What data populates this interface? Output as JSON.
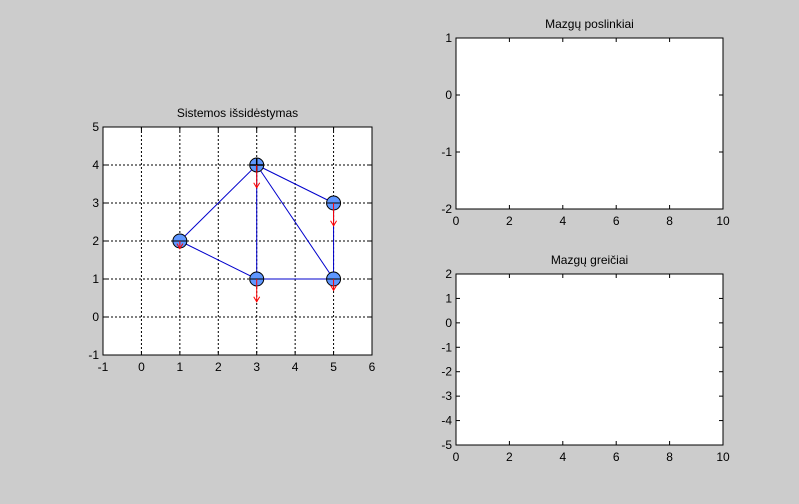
{
  "figure": {
    "background": "#cccccc"
  },
  "chart_data": [
    {
      "id": "layout",
      "type": "scatter",
      "title": "Sistemos išsidėstymas",
      "xlabel": "",
      "ylabel": "",
      "xlim": [
        -1,
        6
      ],
      "ylim": [
        -1,
        5
      ],
      "xticks": [
        "-1",
        "0",
        "1",
        "2",
        "3",
        "4",
        "5",
        "6"
      ],
      "yticks": [
        "-1",
        "0",
        "1",
        "2",
        "3",
        "4",
        "5"
      ],
      "grid": true,
      "nodes": [
        {
          "x": 1,
          "y": 2,
          "force_dy": -0.2
        },
        {
          "x": 3,
          "y": 4,
          "force_dy": -0.6
        },
        {
          "x": 5,
          "y": 3,
          "force_dy": -0.6
        },
        {
          "x": 3,
          "y": 1,
          "force_dy": -0.6
        },
        {
          "x": 5,
          "y": 1,
          "force_dy": -0.3
        }
      ],
      "edges": [
        [
          0,
          1
        ],
        [
          0,
          3
        ],
        [
          1,
          2
        ],
        [
          1,
          3
        ],
        [
          1,
          4
        ],
        [
          2,
          4
        ],
        [
          3,
          4
        ]
      ],
      "fixed_node": 1,
      "colors": {
        "node": "#5f97ff",
        "edge": "#0000cc",
        "force": "#ff0000",
        "outline": "#000000"
      }
    },
    {
      "id": "displacements",
      "type": "line",
      "title": "Mazgų poslinkiai",
      "xlabel": "",
      "ylabel": "",
      "xlim": [
        0,
        10
      ],
      "ylim": [
        -2,
        1
      ],
      "xticks": [
        "0",
        "2",
        "4",
        "6",
        "8",
        "10"
      ],
      "yticks": [
        "-2",
        "-1",
        "0",
        "1"
      ],
      "grid": false,
      "series": []
    },
    {
      "id": "velocities",
      "type": "line",
      "title": "Mazgų greičiai",
      "xlabel": "",
      "ylabel": "",
      "xlim": [
        0,
        10
      ],
      "ylim": [
        -5,
        2
      ],
      "xticks": [
        "0",
        "2",
        "4",
        "6",
        "8",
        "10"
      ],
      "yticks": [
        "-5",
        "-4",
        "-3",
        "-2",
        "-1",
        "0",
        "1",
        "2"
      ],
      "grid": false,
      "series": []
    }
  ]
}
